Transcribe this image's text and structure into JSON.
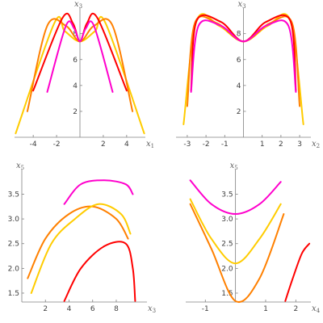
{
  "chart_data": [
    {
      "type": "line",
      "xlabel": "x1",
      "ylabel": "x3",
      "xlim": [
        -5.6,
        5.6
      ],
      "ylim": [
        0,
        9.6
      ],
      "x_ticks": [
        -4,
        -2,
        2,
        4
      ],
      "y_ticks": [
        2,
        4,
        6,
        8
      ],
      "grid": false,
      "legend": "none",
      "color_scale": [
        "#ff0000",
        "#ff8000",
        "#ffcc00",
        "#ccff00",
        "#40ff40",
        "#00ffcc",
        "#00ccff",
        "#ff00cc"
      ],
      "series": [
        {
          "color": "#ffcc00",
          "x": [
            -5.5,
            -2.2,
            -1.3,
            0,
            1.3,
            2.2,
            5.5
          ],
          "y": [
            0.3,
            8.8,
            8.2,
            7.4,
            8.2,
            8.8,
            0.3
          ]
        },
        {
          "color": "#ff8000",
          "x": [
            -4.5,
            -2.8,
            -1.2,
            0,
            1.2,
            2.8,
            4.5
          ],
          "y": [
            2.0,
            8.6,
            8.6,
            7.4,
            8.6,
            8.6,
            2.0
          ]
        },
        {
          "color": "#ff0000",
          "x": [
            -4.0,
            -1.5,
            -0.6,
            0,
            0.6,
            1.5,
            4.0
          ],
          "y": [
            3.6,
            9.2,
            8.8,
            7.4,
            8.8,
            9.2,
            3.6
          ]
        },
        {
          "color": "#ff00cc",
          "x": [
            -2.8,
            -1.2,
            -0.5,
            0,
            0.5,
            1.2,
            2.8
          ],
          "y": [
            3.5,
            8.6,
            8.4,
            7.4,
            8.4,
            8.6,
            3.5
          ]
        }
      ]
    },
    {
      "type": "line",
      "xlabel": "x2",
      "ylabel": "x3",
      "xlim": [
        -3.6,
        3.6
      ],
      "ylim": [
        0,
        9.6
      ],
      "x_ticks": [
        -3,
        -2,
        -1,
        1,
        2,
        3
      ],
      "y_ticks": [
        2,
        4,
        6,
        8
      ],
      "grid": false,
      "legend": "none",
      "series": [
        {
          "color": "#ffcc00",
          "x": [
            -3.2,
            -2.5,
            -1.3,
            0,
            1.3,
            2.5,
            3.2
          ],
          "y": [
            1.0,
            9.0,
            8.6,
            7.4,
            8.6,
            9.0,
            1.0
          ]
        },
        {
          "color": "#ff8000",
          "x": [
            -3.0,
            -2.6,
            -1.4,
            0,
            1.4,
            2.6,
            3.0
          ],
          "y": [
            2.4,
            8.8,
            8.8,
            7.4,
            8.8,
            8.8,
            2.4
          ]
        },
        {
          "color": "#ff0000",
          "x": [
            -2.8,
            -2.5,
            -1.2,
            0,
            1.2,
            2.5,
            2.8
          ],
          "y": [
            3.6,
            9.0,
            8.9,
            7.4,
            8.9,
            9.0,
            3.6
          ]
        },
        {
          "color": "#ff00cc",
          "x": [
            -2.8,
            -2.4,
            -1.2,
            0,
            1.2,
            2.4,
            2.8
          ],
          "y": [
            3.5,
            8.6,
            8.6,
            7.4,
            8.6,
            8.6,
            3.5
          ]
        }
      ]
    },
    {
      "type": "line",
      "xlabel": "x3",
      "ylabel": "x5",
      "xlim": [
        0,
        10.6
      ],
      "ylim": [
        1.32,
        3.9
      ],
      "x_ticks": [
        2,
        4,
        6,
        8
      ],
      "y_ticks": [
        1.5,
        2.0,
        2.5,
        3.0,
        3.5
      ],
      "grid": false,
      "legend": "none",
      "series": [
        {
          "color": "#ff0000",
          "x": [
            3.6,
            5.0,
            7.0,
            8.8,
            9.4,
            9.6
          ],
          "y": [
            1.34,
            2.0,
            2.45,
            2.5,
            2.0,
            1.34
          ]
        },
        {
          "color": "#ff8000",
          "x": [
            0.5,
            2.0,
            4.0,
            6.0,
            8.0,
            9.0
          ],
          "y": [
            1.8,
            2.6,
            3.1,
            3.25,
            3.0,
            2.6
          ]
        },
        {
          "color": "#ffcc00",
          "x": [
            0.8,
            2.5,
            4.5,
            6.5,
            8.4,
            9.2
          ],
          "y": [
            1.5,
            2.5,
            3.0,
            3.3,
            3.1,
            2.7
          ]
        },
        {
          "color": "#ff00cc",
          "x": [
            3.6,
            5.0,
            7.0,
            8.8,
            9.4
          ],
          "y": [
            3.3,
            3.7,
            3.78,
            3.7,
            3.5
          ]
        }
      ]
    },
    {
      "type": "line",
      "xlabel": "x4",
      "ylabel": "x5",
      "xlim": [
        -1.65,
        2.5
      ],
      "ylim": [
        1.32,
        3.9
      ],
      "x_ticks": [
        -1,
        1,
        2
      ],
      "y_ticks": [
        1.5,
        2.0,
        2.5,
        3.0,
        3.5
      ],
      "grid": false,
      "legend": "none",
      "series": [
        {
          "color": "#ff0000",
          "x": [
            1.65,
            1.9,
            2.2,
            2.45
          ],
          "y": [
            1.34,
            1.8,
            2.3,
            2.5
          ]
        },
        {
          "color": "#ff8000",
          "x": [
            -1.5,
            -0.8,
            0,
            0.8,
            1.6
          ],
          "y": [
            3.3,
            2.4,
            1.34,
            1.8,
            3.1
          ]
        },
        {
          "color": "#ffcc00",
          "x": [
            -1.5,
            -0.8,
            0,
            0.8,
            1.5
          ],
          "y": [
            3.4,
            2.6,
            2.1,
            2.6,
            3.3
          ]
        },
        {
          "color": "#ff00cc",
          "x": [
            -1.5,
            -0.8,
            0,
            0.8,
            1.5
          ],
          "y": [
            3.78,
            3.3,
            3.1,
            3.3,
            3.75
          ]
        }
      ]
    }
  ]
}
